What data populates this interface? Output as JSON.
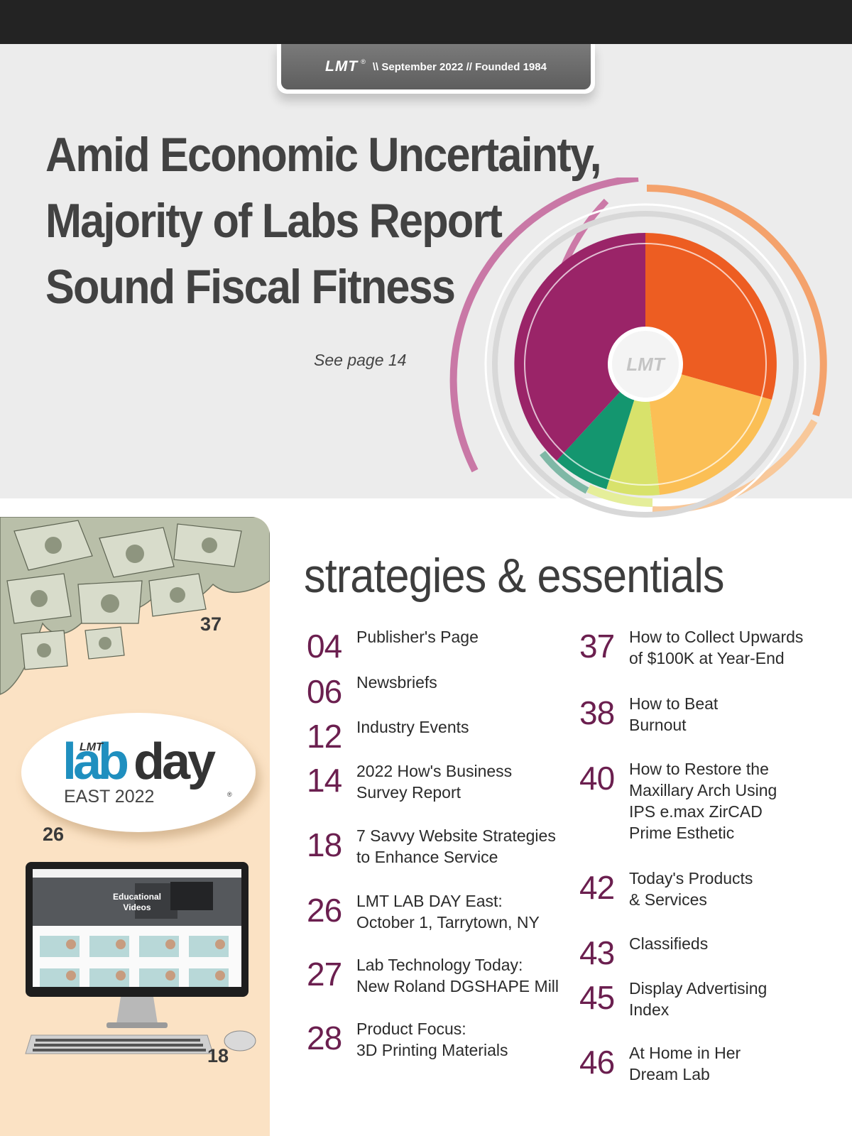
{
  "masthead": {
    "logo": "LMT",
    "registered": "®",
    "tagline": "\\\\ September 2022 // Founded 1984"
  },
  "cover": {
    "headline_lines": [
      "Amid Economic Uncertainty,",
      "Majority of Labs Report",
      "Sound Fiscal Fitness"
    ],
    "see_page": "See page 14",
    "chart_logo": "LMT"
  },
  "sidebar": {
    "money_page": "37",
    "labday": {
      "lmt": "LMT",
      "lab": "lab",
      "day": "day",
      "event": "EAST 2022",
      "registered": "®",
      "page": "26"
    },
    "monitor": {
      "screen_title_1": "Educational",
      "screen_title_2": "Videos",
      "page": "18"
    }
  },
  "toc": {
    "title": "strategies & essentials",
    "left": [
      {
        "num": "04",
        "title": "Publisher's Page"
      },
      {
        "num": "06",
        "title": "Newsbriefs"
      },
      {
        "num": "12",
        "title": "Industry Events"
      },
      {
        "num": "14",
        "title": "2022 How's Business\nSurvey Report"
      },
      {
        "num": "18",
        "title": "7 Savvy Website Strategies\nto Enhance Service"
      },
      {
        "num": "26",
        "title": "LMT LAB DAY East:\nOctober 1, Tarrytown, NY"
      },
      {
        "num": "27",
        "title": "Lab Technology Today:\nNew Roland DGSHAPE Mill"
      },
      {
        "num": "28",
        "title": "Product Focus:\n3D Printing Materials"
      }
    ],
    "right": [
      {
        "num": "37",
        "title": "How to Collect Upwards\nof $100K at Year-End"
      },
      {
        "num": "38",
        "title": "How to Beat\nBurnout"
      },
      {
        "num": "40",
        "title": "How to Restore the\nMaxillary Arch Using\nIPS e.max ZirCAD\nPrime Esthetic"
      },
      {
        "num": "42",
        "title": "Today's Products\n& Services"
      },
      {
        "num": "43",
        "title": "Classifieds"
      },
      {
        "num": "45",
        "title": "Display Advertising\nIndex"
      },
      {
        "num": "46",
        "title": "At Home in Her\nDream Lab"
      }
    ]
  },
  "colors": {
    "accent_number": "#6b1f4f",
    "sidebar_bg": "#fbe2c4",
    "hero_bg": "#ececec",
    "labday_blue": "#1f8fbf"
  }
}
